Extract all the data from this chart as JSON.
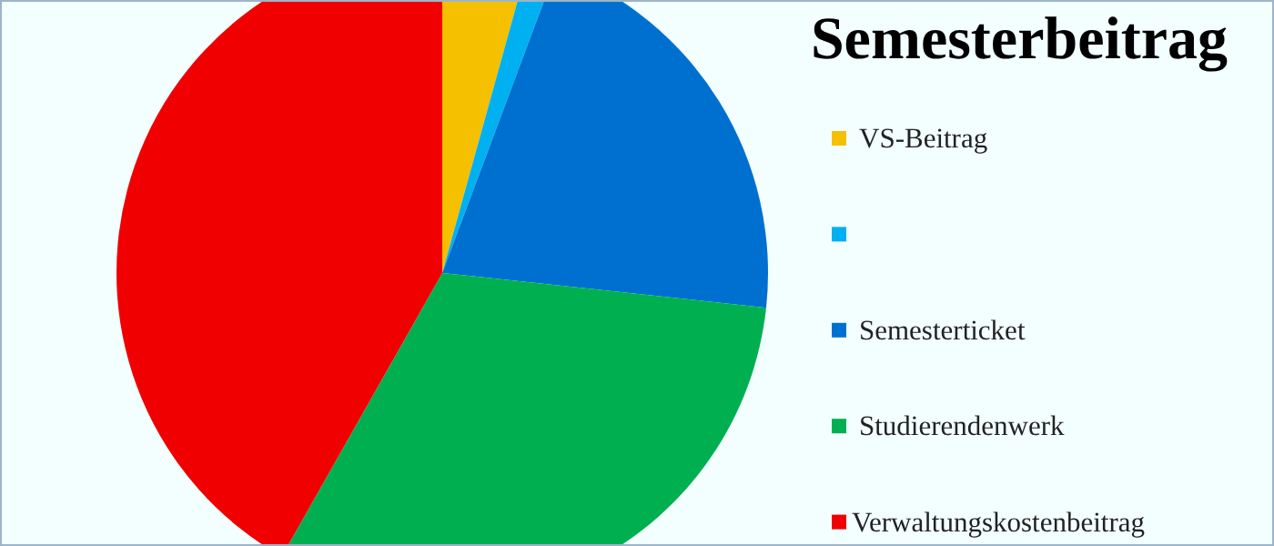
{
  "chart_data": {
    "type": "pie",
    "title": "Semesterbeitrag",
    "categories": [
      "VS-Beitrag",
      null,
      "Semesterticket",
      "Studierendenwerk",
      "Verwaltungskostenbeitrag"
    ],
    "values": [
      4.3,
      1.4,
      21.0,
      31.5,
      41.8
    ],
    "colors": [
      "#f5c000",
      "#00b0f0",
      "#0070d0",
      "#00b050",
      "#f00000"
    ],
    "legend": "right"
  }
}
